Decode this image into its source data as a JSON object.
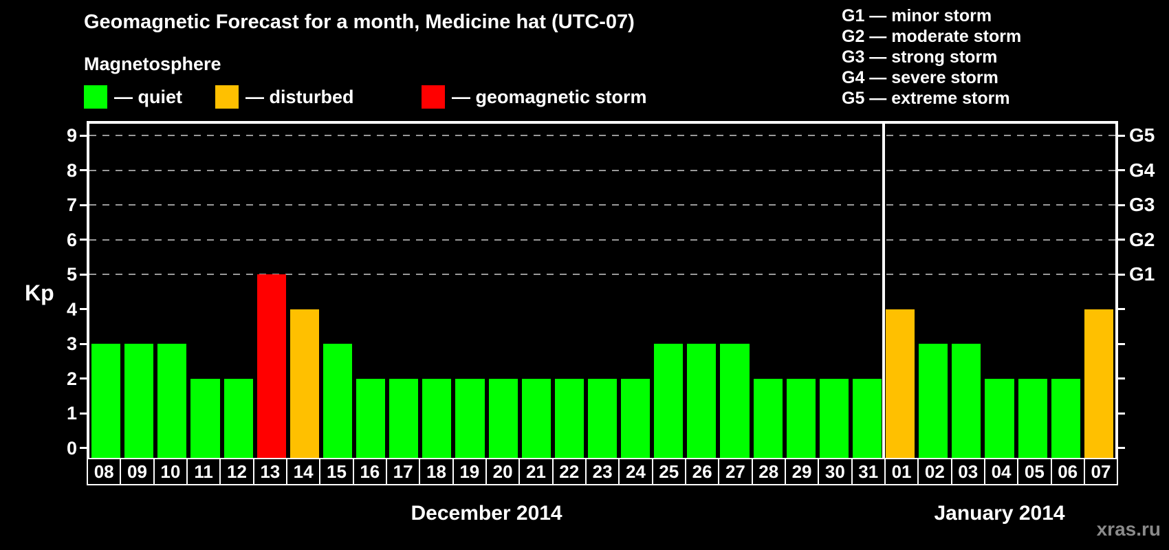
{
  "header": {
    "title": "Geomagnetic Forecast for a month, Medicine hat (UTC-07)",
    "subtitle": "Magnetosphere",
    "legend": [
      {
        "key": "quiet",
        "label": "— quiet"
      },
      {
        "key": "disturbed",
        "label": "— disturbed"
      },
      {
        "key": "storm",
        "label": "— geomagnetic storm"
      }
    ],
    "storm_scale_legend": [
      "G1 — minor storm",
      "G2 — moderate storm",
      "G3 — strong storm",
      "G4 — severe storm",
      "G5 — extreme storm"
    ]
  },
  "chart_data": {
    "type": "bar",
    "title": "Geomagnetic Forecast for a month, Medicine hat (UTC-07)",
    "ylabel": "Kp",
    "ylim": [
      0,
      9
    ],
    "yticks": [
      0,
      1,
      2,
      3,
      4,
      5,
      6,
      7,
      8,
      9
    ],
    "grid_levels": [
      5,
      6,
      7,
      8,
      9
    ],
    "grid_style": "dashed",
    "legend_position": "top",
    "right_axis": [
      {
        "value": 5,
        "label": "G1"
      },
      {
        "value": 6,
        "label": "G2"
      },
      {
        "value": 7,
        "label": "G3"
      },
      {
        "value": 8,
        "label": "G4"
      },
      {
        "value": 9,
        "label": "G5"
      }
    ],
    "status_colors": {
      "quiet": "#00ff00",
      "disturbed": "#ffc000",
      "storm": "#ff0000"
    },
    "axis_color": "#ffffff",
    "grid_color": "#9a9a9a",
    "background_color": "#000000",
    "sections": [
      {
        "label": "December 2014",
        "bars": [
          {
            "day": "08",
            "kp": 3,
            "status": "quiet"
          },
          {
            "day": "09",
            "kp": 3,
            "status": "quiet"
          },
          {
            "day": "10",
            "kp": 3,
            "status": "quiet"
          },
          {
            "day": "11",
            "kp": 2,
            "status": "quiet"
          },
          {
            "day": "12",
            "kp": 2,
            "status": "quiet"
          },
          {
            "day": "13",
            "kp": 5,
            "status": "storm"
          },
          {
            "day": "14",
            "kp": 4,
            "status": "disturbed"
          },
          {
            "day": "15",
            "kp": 3,
            "status": "quiet"
          },
          {
            "day": "16",
            "kp": 2,
            "status": "quiet"
          },
          {
            "day": "17",
            "kp": 2,
            "status": "quiet"
          },
          {
            "day": "18",
            "kp": 2,
            "status": "quiet"
          },
          {
            "day": "19",
            "kp": 2,
            "status": "quiet"
          },
          {
            "day": "20",
            "kp": 2,
            "status": "quiet"
          },
          {
            "day": "21",
            "kp": 2,
            "status": "quiet"
          },
          {
            "day": "22",
            "kp": 2,
            "status": "quiet"
          },
          {
            "day": "23",
            "kp": 2,
            "status": "quiet"
          },
          {
            "day": "24",
            "kp": 2,
            "status": "quiet"
          },
          {
            "day": "25",
            "kp": 3,
            "status": "quiet"
          },
          {
            "day": "26",
            "kp": 3,
            "status": "quiet"
          },
          {
            "day": "27",
            "kp": 3,
            "status": "quiet"
          },
          {
            "day": "28",
            "kp": 2,
            "status": "quiet"
          },
          {
            "day": "29",
            "kp": 2,
            "status": "quiet"
          },
          {
            "day": "30",
            "kp": 2,
            "status": "quiet"
          },
          {
            "day": "31",
            "kp": 2,
            "status": "quiet"
          }
        ]
      },
      {
        "label": "January 2014",
        "bars": [
          {
            "day": "01",
            "kp": 4,
            "status": "disturbed"
          },
          {
            "day": "02",
            "kp": 3,
            "status": "quiet"
          },
          {
            "day": "03",
            "kp": 3,
            "status": "quiet"
          },
          {
            "day": "04",
            "kp": 2,
            "status": "quiet"
          },
          {
            "day": "05",
            "kp": 2,
            "status": "quiet"
          },
          {
            "day": "06",
            "kp": 2,
            "status": "quiet"
          },
          {
            "day": "07",
            "kp": 4,
            "status": "disturbed"
          }
        ]
      }
    ]
  },
  "footer": {
    "watermark": "xras.ru"
  }
}
